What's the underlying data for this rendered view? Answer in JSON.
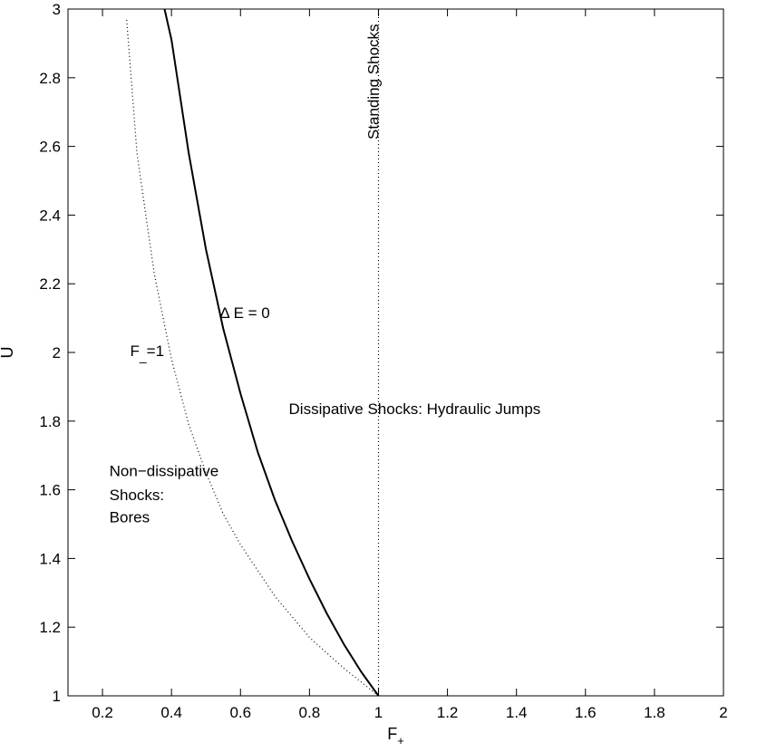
{
  "chart_data": {
    "type": "line",
    "title": "",
    "xlabel": "F",
    "xlabel_subscript": "+",
    "ylabel": "U",
    "xlim": [
      0.1,
      2
    ],
    "ylim": [
      1,
      3
    ],
    "xticks": [
      0.2,
      0.4,
      0.6,
      0.8,
      1,
      1.2,
      1.4,
      1.6,
      1.8,
      2
    ],
    "yticks": [
      1,
      1.2,
      1.4,
      1.6,
      1.8,
      2,
      2.2,
      2.4,
      2.6,
      2.8,
      3
    ],
    "grid": false,
    "series": [
      {
        "style": "solid",
        "color": "#000000",
        "x": [
          1.0,
          0.95,
          0.9,
          0.85,
          0.8,
          0.75,
          0.7,
          0.65,
          0.6,
          0.55,
          0.5,
          0.45,
          0.4,
          0.38
        ],
        "y": [
          1.0,
          1.07,
          1.15,
          1.24,
          1.34,
          1.45,
          1.57,
          1.71,
          1.88,
          2.07,
          2.3,
          2.58,
          2.91,
          3.0
        ]
      },
      {
        "style": "dotted",
        "color": "#000000",
        "x": [
          1.0,
          0.9,
          0.8,
          0.7,
          0.6,
          0.55,
          0.5,
          0.45,
          0.4,
          0.35,
          0.3,
          0.27
        ],
        "y": [
          1.0,
          1.08,
          1.17,
          1.29,
          1.44,
          1.53,
          1.65,
          1.79,
          1.98,
          2.23,
          2.58,
          2.97
        ]
      },
      {
        "style": "dotted",
        "color": "#000000",
        "x": [
          1.0,
          1.0
        ],
        "y": [
          1.0,
          3.0
        ]
      }
    ],
    "annotations": [
      {
        "text": "Standing Shocks",
        "x": 1.0,
        "y": 2.62,
        "rotation": -90
      },
      {
        "text": "Δ E = 0",
        "x": 0.54,
        "y": 2.1
      },
      {
        "text": "F",
        "subscript": "_",
        "suffix": "=1",
        "x": 0.28,
        "y": 1.99
      },
      {
        "text": "Dissipative Shocks: Hydraulic Jumps",
        "x": 0.74,
        "y": 1.82
      },
      {
        "text": "Non−dissipative",
        "x": 0.22,
        "y": 1.64
      },
      {
        "text": "Shocks:",
        "x": 0.22,
        "y": 1.57
      },
      {
        "text": "Bores",
        "x": 0.22,
        "y": 1.505
      }
    ]
  }
}
